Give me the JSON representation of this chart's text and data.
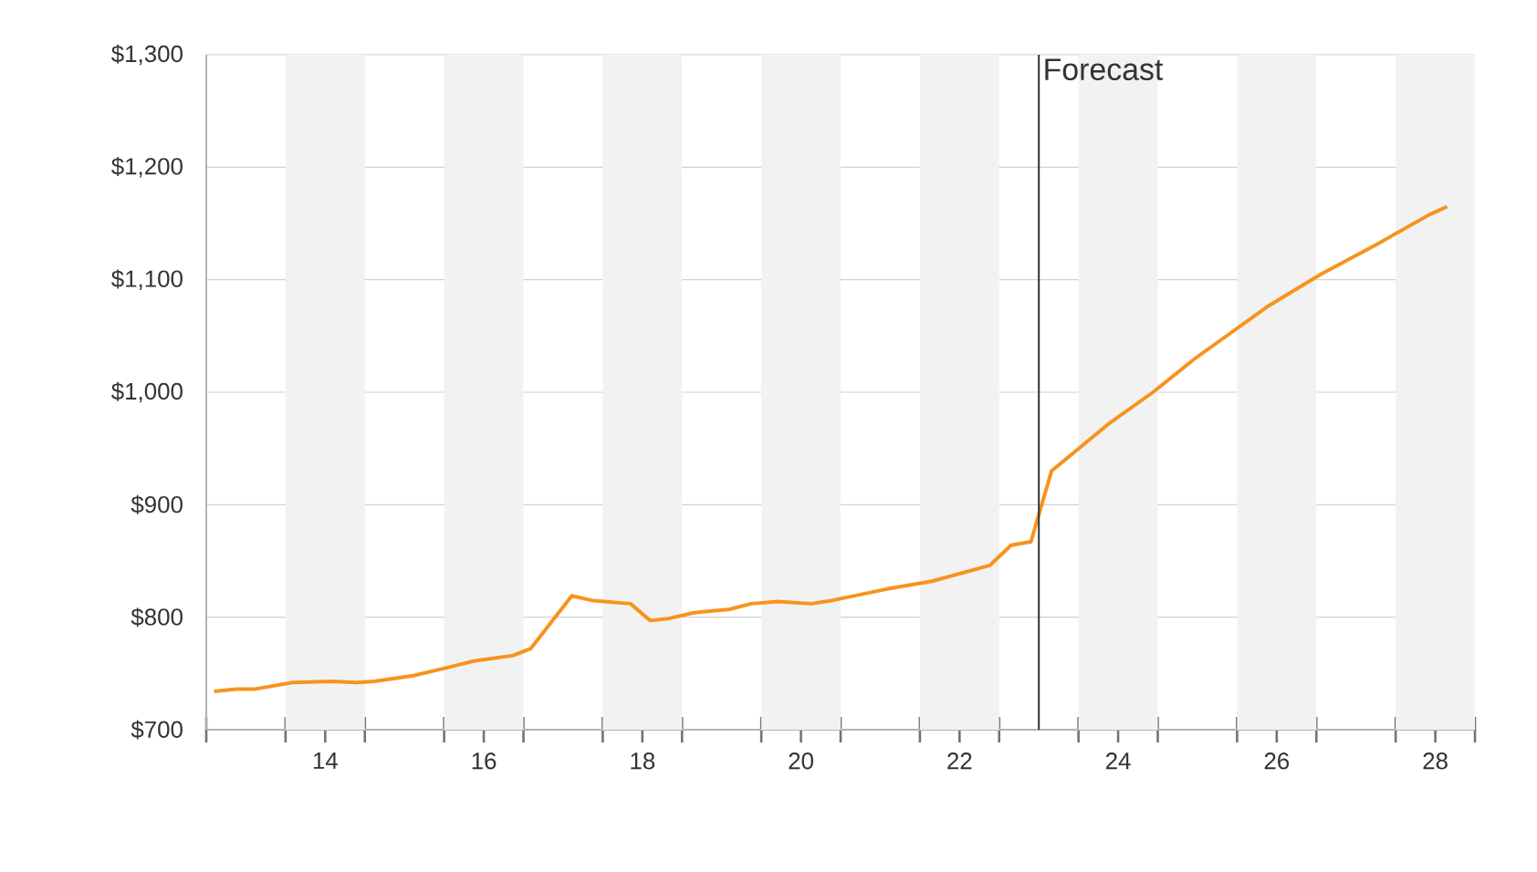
{
  "chart_data": {
    "type": "line",
    "x": [
      12.6,
      12.87,
      13.1,
      13.59,
      14.08,
      14.39,
      14.62,
      15.11,
      15.53,
      15.87,
      16.37,
      16.59,
      17.11,
      17.36,
      17.85,
      18.1,
      18.34,
      18.65,
      19.1,
      19.37,
      19.71,
      20.13,
      20.4,
      21.08,
      21.65,
      22.38,
      22.65,
      22.9,
      23.16,
      23.9,
      24.44,
      24.97,
      25.88,
      26.56,
      27.25,
      27.93,
      28.15
    ],
    "series": [
      {
        "color": "#f7931e",
        "values": [
          734,
          736,
          736,
          742,
          743,
          742,
          743,
          748,
          755,
          761,
          766,
          772,
          819,
          815,
          812,
          797,
          799,
          804,
          807,
          812,
          814,
          812,
          815,
          825,
          832,
          846,
          864,
          867,
          930,
          973,
          1000,
          1030,
          1076,
          1105,
          1131,
          1158,
          1165
        ]
      }
    ],
    "xlim": [
      12.5,
      28.5
    ],
    "xticks": [
      {
        "value": 12.5,
        "label": null
      },
      {
        "value": 13.5,
        "label": null
      },
      14,
      {
        "value": 14.5,
        "label": null
      },
      {
        "value": 15.5,
        "label": null
      },
      16,
      {
        "value": 16.5,
        "label": null
      },
      {
        "value": 17.5,
        "label": null
      },
      18,
      {
        "value": 18.5,
        "label": null
      },
      {
        "value": 19.5,
        "label": null
      },
      20,
      {
        "value": 20.5,
        "label": null
      },
      {
        "value": 21.5,
        "label": null
      },
      22,
      {
        "value": 22.5,
        "label": null
      },
      {
        "value": 23.5,
        "label": null
      },
      24,
      {
        "value": 24.5,
        "label": null
      },
      {
        "value": 25.5,
        "label": null
      },
      26,
      {
        "value": 26.5,
        "label": null
      },
      {
        "value": 27.5,
        "label": null
      },
      28,
      {
        "value": 28.5,
        "label": null
      }
    ],
    "ylim": [
      700,
      1300
    ],
    "yticks": [
      {
        "value": 700,
        "label": "$700"
      },
      {
        "value": 800,
        "label": "$800"
      },
      {
        "value": 900,
        "label": "$900"
      },
      {
        "value": 1000,
        "label": "$1,000"
      },
      {
        "value": 1100,
        "label": "$1,100"
      },
      {
        "value": 1200,
        "label": "$1,200"
      },
      {
        "value": 1300,
        "label": "$1,300"
      }
    ],
    "grid": "y",
    "marker": "none",
    "line_style": "solid",
    "ref_lines": [
      {
        "axis": "x",
        "value": 23,
        "label": "Forecast",
        "color": "#333333"
      }
    ],
    "bands": [
      {
        "axis": "x",
        "from": 13.5,
        "to": 14.5,
        "color": "#f2f2f2"
      },
      {
        "axis": "x",
        "from": 15.5,
        "to": 16.5,
        "color": "#f2f2f2"
      },
      {
        "axis": "x",
        "from": 17.5,
        "to": 18.5,
        "color": "#f2f2f2"
      },
      {
        "axis": "x",
        "from": 19.5,
        "to": 20.5,
        "color": "#f2f2f2"
      },
      {
        "axis": "x",
        "from": 21.5,
        "to": 22.5,
        "color": "#f2f2f2"
      },
      {
        "axis": "x",
        "from": 23.5,
        "to": 24.5,
        "color": "#f2f2f2"
      },
      {
        "axis": "x",
        "from": 25.5,
        "to": 26.5,
        "color": "#f2f2f2"
      },
      {
        "axis": "x",
        "from": 27.5,
        "to": 28.5,
        "color": "#f2f2f2"
      }
    ]
  }
}
